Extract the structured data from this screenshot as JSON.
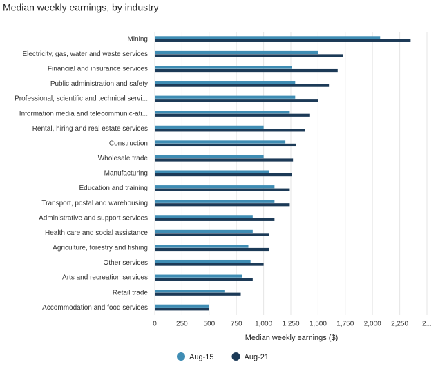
{
  "chart_data": {
    "type": "hbar",
    "title": "Median weekly earnings, by industry",
    "x_label": "Median weekly earnings ($)",
    "categories": [
      "Mining",
      "Electricity, gas, water and waste services",
      "Financial and insurance services",
      "Public administration and safety",
      "Professional, scientific and technical servi...",
      "Information media and telecommunic-ati...",
      "Rental, hiring and real estate services",
      "Construction",
      "Wholesale trade",
      "Manufacturing",
      "Education and training",
      "Transport, postal and warehousing",
      "Administrative and support services",
      "Health care and social assistance",
      "Agriculture, forestry and fishing",
      "Other services",
      "Arts and recreation services",
      "Retail trade",
      "Accommodation and food services"
    ],
    "series": [
      {
        "name": "Aug-15",
        "color": "#3f8db4",
        "values": [
          2070,
          1500,
          1260,
          1290,
          1290,
          1240,
          1000,
          1200,
          1000,
          1050,
          1100,
          1100,
          900,
          900,
          860,
          880,
          800,
          640,
          500
        ]
      },
      {
        "name": "Aug-21",
        "color": "#1c3a57",
        "values": [
          2350,
          1730,
          1680,
          1600,
          1500,
          1420,
          1380,
          1300,
          1270,
          1260,
          1240,
          1240,
          1100,
          1050,
          1050,
          1000,
          900,
          790,
          500
        ]
      }
    ],
    "xlim": [
      0,
      2500
    ],
    "xticks": [
      0,
      250,
      500,
      750,
      {
        "value": 1000,
        "label": "1,000"
      },
      {
        "value": 1250,
        "label": "1,250"
      },
      {
        "value": 1500,
        "label": "1,500"
      },
      {
        "value": 1750,
        "label": "1,750"
      },
      {
        "value": 2000,
        "label": "2,000"
      },
      {
        "value": 2250,
        "label": "2,250"
      },
      {
        "value": 2500,
        "label": "2..."
      }
    ],
    "grid": true
  }
}
